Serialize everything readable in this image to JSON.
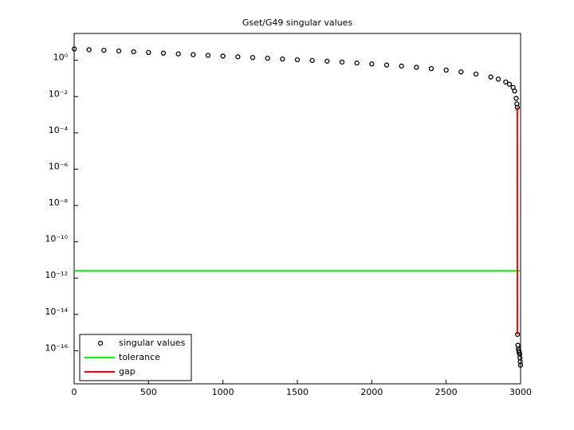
{
  "chart_data": {
    "type": "line",
    "title": "Gset/G49 singular values",
    "log_y": true,
    "xlim": [
      0,
      3000
    ],
    "xticks": [
      0,
      500,
      1000,
      1500,
      2000,
      2500,
      3000
    ],
    "ylim": [
      1.5e-18,
      30
    ],
    "yticks": [
      {
        "value": 1,
        "label": "10⁰"
      },
      {
        "value": 0.01,
        "label": "10⁻²"
      },
      {
        "value": 0.0001,
        "label": "10⁻⁴"
      },
      {
        "value": 1e-06,
        "label": "10⁻⁶"
      },
      {
        "value": 1e-08,
        "label": "10⁻⁸"
      },
      {
        "value": 1e-10,
        "label": "10⁻¹⁰"
      },
      {
        "value": 1e-12,
        "label": "10⁻¹²"
      },
      {
        "value": 1e-14,
        "label": "10⁻¹⁴"
      },
      {
        "value": 1e-16,
        "label": "10⁻¹⁶"
      }
    ],
    "legend": "lower-left",
    "series": [
      {
        "name": "singular values",
        "color": "#000000",
        "marker": "circle",
        "x": [
          1,
          100,
          200,
          300,
          400,
          500,
          600,
          700,
          800,
          900,
          1000,
          1100,
          1200,
          1300,
          1400,
          1500,
          1600,
          1700,
          1800,
          1900,
          2000,
          2100,
          2200,
          2300,
          2400,
          2500,
          2600,
          2700,
          2800,
          2850,
          2900,
          2925,
          2950,
          2960,
          2970,
          2975,
          2978,
          2979,
          2982,
          2985,
          2988,
          2990,
          2992,
          2994,
          2996,
          2998,
          3000
        ],
        "values": [
          4.17,
          3.8,
          3.55,
          3.24,
          2.95,
          2.69,
          2.45,
          2.24,
          2.04,
          1.86,
          1.7,
          1.55,
          1.41,
          1.29,
          1.17,
          1.07,
          0.977,
          0.891,
          0.794,
          0.708,
          0.631,
          0.55,
          0.479,
          0.407,
          0.347,
          0.288,
          0.229,
          0.174,
          0.12,
          0.0912,
          0.0631,
          0.0479,
          0.0316,
          0.02,
          0.00794,
          0.00398,
          0.00251,
          7.9e-16,
          2e-16,
          1.26e-16,
          1e-16,
          7.9e-17,
          7.9e-17,
          6.3e-17,
          4e-17,
          2.5e-17,
          1.6e-17
        ]
      },
      {
        "name": "tolerance",
        "color": "#00ff00",
        "x": [
          1,
          3000
        ],
        "values": [
          2.5e-12,
          2.5e-12
        ]
      },
      {
        "name": "gap",
        "color": "#ff0000",
        "x": [
          2978,
          2979
        ],
        "values": [
          0.00251,
          7.9e-16
        ]
      }
    ]
  }
}
